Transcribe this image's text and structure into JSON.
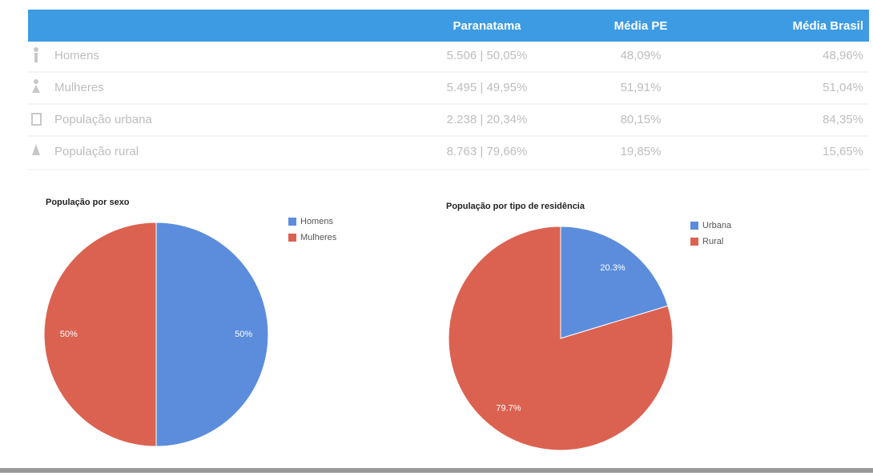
{
  "table": {
    "headers": [
      "Paranatama",
      "Média PE",
      "Média Brasil"
    ],
    "rows": [
      [
        "Homens",
        "5.506 | 50,05%",
        "48,09%",
        "48,96%"
      ],
      [
        "Mulheres",
        "5.495 | 49,95%",
        "51,91%",
        "51,04%"
      ],
      [
        "População urbana",
        "2.238 | 20,34%",
        "80,15%",
        "84,35%"
      ],
      [
        "População rural",
        "8.763 | 79,66%",
        "19,85%",
        "15,65%"
      ]
    ]
  },
  "chart_data": [
    {
      "type": "pie",
      "title": "População por sexo",
      "categories": [
        "Homens",
        "Mulheres"
      ],
      "values": [
        50,
        50
      ],
      "value_labels": [
        "50%",
        "50%"
      ],
      "colors": [
        "#5b8ddc",
        "#db6251"
      ],
      "legend": "right"
    },
    {
      "type": "pie",
      "title": "População por tipo de residência",
      "categories": [
        "Urbana",
        "Rural"
      ],
      "values": [
        20.3,
        79.7
      ],
      "value_labels": [
        "20.3%",
        "79.7%"
      ],
      "colors": [
        "#5b8ddc",
        "#db6251"
      ],
      "legend": "right"
    }
  ]
}
